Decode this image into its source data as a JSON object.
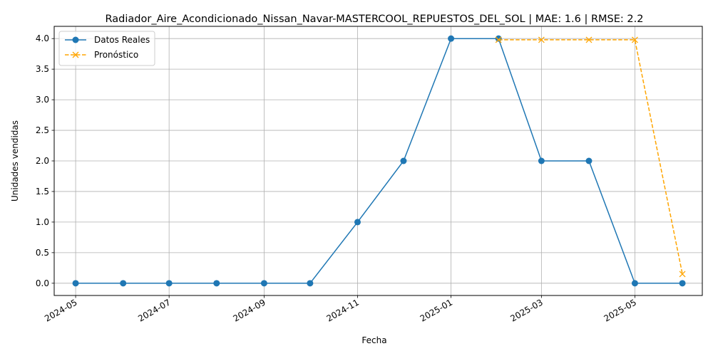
{
  "chart_data": {
    "type": "line",
    "title": "Radiador_Aire_Acondicionado_Nissan_Navar-MASTERCOOL_REPUESTOS_DEL_SOL | MAE: 1.6 | RMSE: 2.2",
    "xlabel": "Fecha",
    "ylabel": "Unidades vendidas",
    "ylim": [
      -0.2,
      4.2
    ],
    "xlim": [
      "2024-04-17",
      "2025-06-14"
    ],
    "grid": true,
    "legend_position": "top-left",
    "x_ticks": [
      "2024-05",
      "2024-07",
      "2024-09",
      "2024-11",
      "2025-01",
      "2025-03",
      "2025-05"
    ],
    "y_ticks": [
      "0.0",
      "0.5",
      "1.0",
      "1.5",
      "2.0",
      "2.5",
      "3.0",
      "3.5",
      "4.0"
    ],
    "series": [
      {
        "name": "Datos Reales",
        "color": "#1f77b4",
        "style": "solid",
        "marker": "circle",
        "points": [
          {
            "x": "2024-05-01",
            "y": 0
          },
          {
            "x": "2024-06-01",
            "y": 0
          },
          {
            "x": "2024-07-01",
            "y": 0
          },
          {
            "x": "2024-08-01",
            "y": 0
          },
          {
            "x": "2024-09-01",
            "y": 0
          },
          {
            "x": "2024-10-01",
            "y": 0
          },
          {
            "x": "2024-11-01",
            "y": 1
          },
          {
            "x": "2024-12-01",
            "y": 2
          },
          {
            "x": "2025-01-01",
            "y": 4
          },
          {
            "x": "2025-02-01",
            "y": 4
          },
          {
            "x": "2025-03-01",
            "y": 2
          },
          {
            "x": "2025-04-01",
            "y": 2
          },
          {
            "x": "2025-05-01",
            "y": 0
          },
          {
            "x": "2025-06-01",
            "y": 0
          }
        ]
      },
      {
        "name": "Pronóstico",
        "color": "#ffa500",
        "style": "dashed",
        "marker": "x",
        "points": [
          {
            "x": "2025-02-01",
            "y": 3.98
          },
          {
            "x": "2025-03-01",
            "y": 3.98
          },
          {
            "x": "2025-04-01",
            "y": 3.98
          },
          {
            "x": "2025-05-01",
            "y": 3.98
          },
          {
            "x": "2025-06-01",
            "y": 0.15
          }
        ]
      }
    ]
  }
}
